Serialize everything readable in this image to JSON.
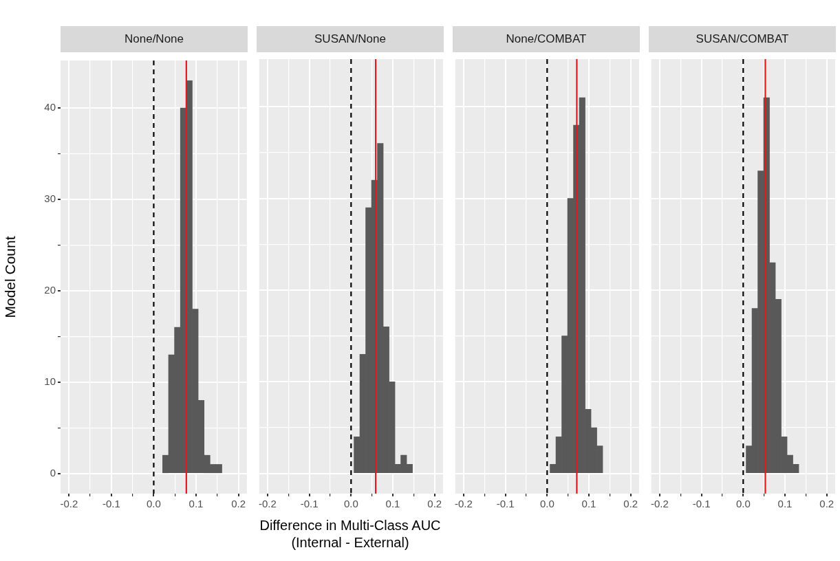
{
  "chart_data": [
    {
      "type": "histogram",
      "title": "None/None",
      "ylabel": "Model Count",
      "color": "#595959",
      "bins": [
        0.021,
        0.035,
        0.049,
        0.063,
        0.077,
        0.091,
        0.105,
        0.119,
        0.133,
        0.147,
        0.161
      ],
      "values": [
        2,
        13,
        16,
        40,
        43,
        18,
        8,
        2,
        1,
        1
      ],
      "xlim": [
        -0.22,
        0.22
      ],
      "xticks": [
        -0.2,
        {
          "value": -0.15,
          "label": null
        },
        -0.1,
        {
          "value": -0.05,
          "label": null
        },
        {
          "value": 0,
          "label": "0.0"
        },
        {
          "value": 0.05,
          "label": null
        },
        0.1,
        {
          "value": 0.15,
          "label": null
        },
        0.2
      ],
      "ylim": [
        -2.2,
        45.2
      ],
      "yticks": [
        0,
        {
          "value": 5,
          "label": null
        },
        10,
        {
          "value": 15,
          "label": null
        },
        20,
        {
          "value": 25,
          "label": null
        },
        30,
        {
          "value": 35,
          "label": null
        },
        40
      ],
      "grid": true,
      "ref_lines": [
        {
          "axis": "x",
          "value": 0,
          "color": "#000000",
          "line_style": "dashed"
        },
        {
          "axis": "x",
          "value": 0.077,
          "color": "#e31a1c",
          "line_style": "solid"
        }
      ]
    },
    {
      "type": "histogram",
      "title": "SUSAN/None",
      "xlabel": "Difference in Multi-Class AUC\n(Internal - External)",
      "color": "#595959",
      "bins": [
        0.007,
        0.021,
        0.035,
        0.049,
        0.063,
        0.077,
        0.091,
        0.105,
        0.119,
        0.133,
        0.147
      ],
      "values": [
        4,
        13,
        29,
        32,
        36,
        16,
        10,
        1,
        2,
        1
      ],
      "xlim": [
        -0.22,
        0.22
      ],
      "xticks": [
        -0.2,
        {
          "value": -0.15,
          "label": null
        },
        -0.1,
        {
          "value": -0.05,
          "label": null
        },
        {
          "value": 0,
          "label": "0.0"
        },
        {
          "value": 0.05,
          "label": null
        },
        0.1,
        {
          "value": 0.15,
          "label": null
        },
        0.2
      ],
      "ylim": [
        -2.2,
        45.2
      ],
      "yticks": [
        0,
        {
          "value": 5,
          "label": null
        },
        10,
        {
          "value": 15,
          "label": null
        },
        20,
        {
          "value": 25,
          "label": null
        },
        30,
        {
          "value": 35,
          "label": null
        },
        40
      ],
      "grid": true,
      "tick_labels": "x",
      "ref_lines": [
        {
          "axis": "x",
          "value": 0,
          "color": "#000000",
          "line_style": "dashed"
        },
        {
          "axis": "x",
          "value": 0.059,
          "color": "#e31a1c",
          "line_style": "solid"
        }
      ]
    },
    {
      "type": "histogram",
      "title": "None/COMBAT",
      "color": "#595959",
      "bins": [
        0.007,
        0.021,
        0.035,
        0.049,
        0.063,
        0.077,
        0.091,
        0.105,
        0.119,
        0.133
      ],
      "values": [
        1,
        4,
        15,
        30,
        38,
        41,
        7,
        5,
        3
      ],
      "xlim": [
        -0.22,
        0.22
      ],
      "xticks": [
        -0.2,
        {
          "value": -0.15,
          "label": null
        },
        -0.1,
        {
          "value": -0.05,
          "label": null
        },
        {
          "value": 0,
          "label": "0.0"
        },
        {
          "value": 0.05,
          "label": null
        },
        0.1,
        {
          "value": 0.15,
          "label": null
        },
        0.2
      ],
      "ylim": [
        -2.2,
        45.2
      ],
      "yticks": [
        0,
        {
          "value": 5,
          "label": null
        },
        10,
        {
          "value": 15,
          "label": null
        },
        20,
        {
          "value": 25,
          "label": null
        },
        30,
        {
          "value": 35,
          "label": null
        },
        40
      ],
      "grid": true,
      "tick_labels": "x",
      "ref_lines": [
        {
          "axis": "x",
          "value": 0,
          "color": "#000000",
          "line_style": "dashed"
        },
        {
          "axis": "x",
          "value": 0.071,
          "color": "#e31a1c",
          "line_style": "solid"
        }
      ]
    },
    {
      "type": "histogram",
      "title": "SUSAN/COMBAT",
      "color": "#595959",
      "bins": [
        0.007,
        0.021,
        0.035,
        0.049,
        0.063,
        0.077,
        0.091,
        0.105,
        0.119,
        0.133
      ],
      "values": [
        3,
        18,
        33,
        41,
        23,
        19,
        4,
        2,
        1
      ],
      "xlim": [
        -0.22,
        0.22
      ],
      "xticks": [
        -0.2,
        {
          "value": -0.15,
          "label": null
        },
        -0.1,
        {
          "value": -0.05,
          "label": null
        },
        {
          "value": 0,
          "label": "0.0"
        },
        {
          "value": 0.05,
          "label": null
        },
        0.1,
        {
          "value": 0.15,
          "label": null
        },
        0.2
      ],
      "ylim": [
        -2.2,
        45.2
      ],
      "yticks": [
        0,
        {
          "value": 5,
          "label": null
        },
        10,
        {
          "value": 15,
          "label": null
        },
        20,
        {
          "value": 25,
          "label": null
        },
        30,
        {
          "value": 35,
          "label": null
        },
        40
      ],
      "grid": true,
      "tick_labels": "x",
      "ref_lines": [
        {
          "axis": "x",
          "value": 0,
          "color": "#000000",
          "line_style": "dashed"
        },
        {
          "axis": "x",
          "value": 0.053,
          "color": "#e31a1c",
          "line_style": "solid"
        }
      ]
    }
  ]
}
